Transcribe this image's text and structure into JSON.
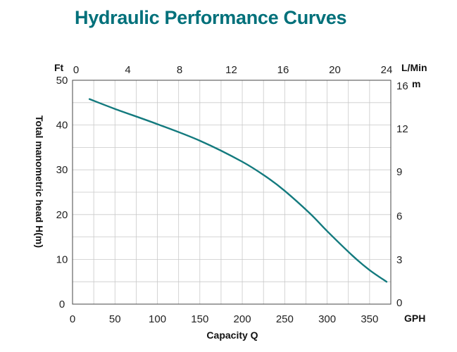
{
  "chart_data": {
    "type": "line",
    "title": "Hydraulic Performance Curves",
    "xlabel": "Capacity Q",
    "ylabel": "Total manometric head H(m)",
    "units": {
      "left_top": "Ft",
      "top_right": "L/Min",
      "right_top": "m",
      "bottom_right": "GPH"
    },
    "x_ticks": [
      "0",
      "50",
      "100",
      "150",
      "200",
      "250",
      "300",
      "350"
    ],
    "y_ticks": [
      "0",
      "10",
      "20",
      "30",
      "40",
      "50"
    ],
    "top_ticks": [
      "0",
      "4",
      "8",
      "12",
      "16",
      "20",
      "24"
    ],
    "right_ticks": [
      "0",
      "3",
      "6",
      "9",
      "12",
      "16"
    ],
    "xlim": [
      0,
      375
    ],
    "ylim": [
      0,
      50
    ],
    "grid": true,
    "series": [
      {
        "color": "#137a7e",
        "x": [
          20,
          50,
          100,
          150,
          200,
          230,
          250,
          280,
          300,
          330,
          350,
          370
        ],
        "y": [
          45.8,
          43.6,
          40.2,
          36.5,
          31.8,
          28.2,
          25.3,
          20.2,
          16.3,
          10.8,
          7.6,
          5.0
        ]
      }
    ]
  }
}
